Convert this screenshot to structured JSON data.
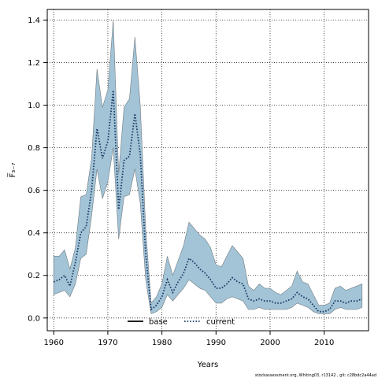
{
  "chart_data": {
    "type": "line",
    "xlabel": "Years",
    "ylabel": "F̅₃₋₇",
    "xlim": [
      1958.8,
      2018.2
    ],
    "ylim": [
      -0.06,
      1.45
    ],
    "xticks": [
      1960,
      1970,
      1980,
      1990,
      2000,
      2010
    ],
    "yticks": [
      0.0,
      0.2,
      0.4,
      0.6,
      0.8,
      1.0,
      1.2,
      1.4
    ],
    "ytick_labels": [
      "0.0",
      "0.2",
      "0.4",
      "0.6",
      "0.8",
      "1.0",
      "1.2",
      "1.4"
    ],
    "grid": true,
    "legend_position": "bottom-center",
    "colors": {
      "band": "#a3c4d6",
      "band_edge": "#707a80",
      "current": "#1a3a66",
      "base": "#000000"
    },
    "legend": [
      {
        "label": "base",
        "style": "solid"
      },
      {
        "label": "current",
        "style": "dotted"
      }
    ],
    "x": [
      1960,
      1961,
      1962,
      1963,
      1964,
      1965,
      1966,
      1967,
      1968,
      1969,
      1970,
      1971,
      1972,
      1973,
      1974,
      1975,
      1976,
      1977,
      1978,
      1979,
      1980,
      1981,
      1982,
      1983,
      1984,
      1985,
      1986,
      1987,
      1988,
      1989,
      1990,
      1991,
      1992,
      1993,
      1994,
      1995,
      1996,
      1997,
      1998,
      1999,
      2000,
      2001,
      2002,
      2003,
      2004,
      2005,
      2006,
      2007,
      2008,
      2009,
      2010,
      2011,
      2012,
      2013,
      2014,
      2015,
      2016,
      2017
    ],
    "series": [
      {
        "label_key": "current",
        "values": [
          0.17,
          0.18,
          0.2,
          0.15,
          0.26,
          0.4,
          0.43,
          0.6,
          0.89,
          0.75,
          0.83,
          1.07,
          0.51,
          0.74,
          0.76,
          0.96,
          0.77,
          0.3,
          0.04,
          0.06,
          0.1,
          0.18,
          0.12,
          0.17,
          0.21,
          0.28,
          0.26,
          0.23,
          0.21,
          0.18,
          0.14,
          0.14,
          0.16,
          0.19,
          0.17,
          0.16,
          0.09,
          0.08,
          0.09,
          0.08,
          0.08,
          0.07,
          0.07,
          0.08,
          0.09,
          0.12,
          0.1,
          0.09,
          0.06,
          0.03,
          0.03,
          0.04,
          0.08,
          0.08,
          0.07,
          0.08,
          0.08,
          0.09
        ],
        "lower": [
          0.11,
          0.12,
          0.13,
          0.1,
          0.16,
          0.28,
          0.3,
          0.48,
          0.7,
          0.56,
          0.64,
          0.8,
          0.37,
          0.57,
          0.58,
          0.7,
          0.54,
          0.18,
          0.02,
          0.03,
          0.05,
          0.11,
          0.08,
          0.11,
          0.14,
          0.18,
          0.16,
          0.14,
          0.13,
          0.1,
          0.07,
          0.07,
          0.09,
          0.1,
          0.09,
          0.08,
          0.04,
          0.04,
          0.05,
          0.04,
          0.04,
          0.04,
          0.04,
          0.04,
          0.05,
          0.07,
          0.06,
          0.05,
          0.03,
          0.02,
          0.02,
          0.02,
          0.04,
          0.05,
          0.04,
          0.04,
          0.04,
          0.05
        ],
        "upper": [
          0.29,
          0.29,
          0.32,
          0.23,
          0.33,
          0.57,
          0.58,
          0.75,
          1.17,
          0.99,
          1.07,
          1.4,
          0.68,
          0.99,
          1.03,
          1.32,
          1.0,
          0.42,
          0.07,
          0.1,
          0.16,
          0.29,
          0.2,
          0.27,
          0.34,
          0.45,
          0.42,
          0.39,
          0.37,
          0.33,
          0.25,
          0.24,
          0.29,
          0.34,
          0.31,
          0.28,
          0.15,
          0.13,
          0.16,
          0.14,
          0.14,
          0.12,
          0.11,
          0.13,
          0.15,
          0.22,
          0.17,
          0.16,
          0.11,
          0.06,
          0.06,
          0.07,
          0.14,
          0.15,
          0.13,
          0.14,
          0.15,
          0.16
        ]
      }
    ]
  },
  "footer": "stockassessment.org, Whiting03, r13142 , git: c28bdc2a44ad"
}
